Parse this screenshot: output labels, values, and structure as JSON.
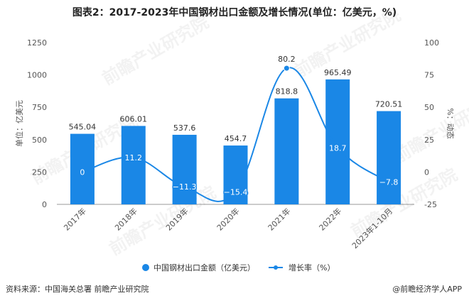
{
  "chart_data": {
    "type": "bar",
    "title": "图表2：2017-2023年中国钢材出口金额及增长情况(单位：亿美元，%)",
    "categories": [
      "2017年",
      "2018年",
      "2019年",
      "2020年",
      "2021年",
      "2022年",
      "2023年1-10月"
    ],
    "ylabel": "单位：亿美元",
    "y2label": "%：动态",
    "ylim": [
      0,
      1250
    ],
    "y2lim": [
      -25,
      100
    ],
    "yticks": [
      0,
      250,
      500,
      750,
      1000,
      1250
    ],
    "y2ticks": [
      -25,
      0,
      25,
      50,
      75,
      100
    ],
    "grid": false,
    "legend_position": "bottom",
    "series": [
      {
        "name": "中国钢材出口金额（亿美元）",
        "type": "bar",
        "axis": "left",
        "values": [
          545.04,
          606.01,
          537.6,
          454.7,
          818.8,
          965.49,
          720.51
        ],
        "labels": [
          "545.04",
          "606.01",
          "537.6",
          "454.7",
          "818.8",
          "965.49",
          "720.51"
        ],
        "color": "#1a87e6"
      },
      {
        "name": "增长率（%）",
        "type": "line",
        "axis": "right",
        "values": [
          0,
          11.2,
          -11.3,
          -15.4,
          80.2,
          18.7,
          -7.8
        ],
        "labels": [
          "0",
          "11.2",
          "-11.3",
          "-15.4",
          "80.2",
          "18.7",
          "-7.8"
        ],
        "color": "#1a87e6"
      }
    ]
  },
  "footer": {
    "source": "资料来源：中国海关总署 前瞻产业研究院",
    "credit": "@前瞻经济学人APP"
  },
  "watermark": "前瞻产业研究院"
}
